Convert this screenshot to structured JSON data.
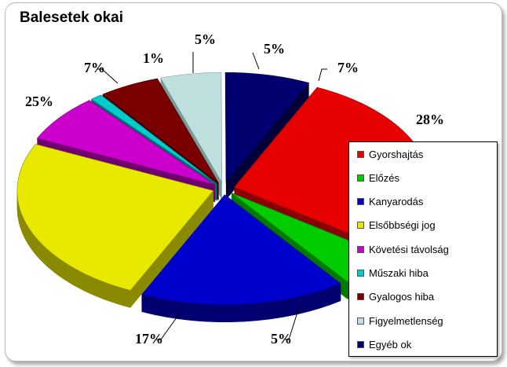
{
  "chart_data": {
    "type": "pie",
    "title": "Balesetek okai",
    "slices": [
      {
        "name": "Gyorshajtás",
        "value": 28,
        "label": "28%",
        "color": "#e60000",
        "dark": "#8a0000"
      },
      {
        "name": "Előzés",
        "value": 5,
        "label": "5%",
        "color": "#00cc00",
        "dark": "#007a00"
      },
      {
        "name": "Kanyarodás",
        "value": 17,
        "label": "17%",
        "color": "#0000cc",
        "dark": "#000070"
      },
      {
        "name": "Elsőbbségi jog",
        "value": 25,
        "label": "25%",
        "color": "#e8e800",
        "dark": "#8a8a00"
      },
      {
        "name": "Követési távolság",
        "value": 7,
        "label": "7%",
        "color": "#cc00cc",
        "dark": "#700070"
      },
      {
        "name": "Műszaki hiba",
        "value": 1,
        "label": "1%",
        "color": "#00cccc",
        "dark": "#007070"
      },
      {
        "name": "Gyalogos hiba",
        "value": 5,
        "label": "5%",
        "color": "#7a0000",
        "dark": "#400000"
      },
      {
        "name": "Figyelmetlenség",
        "value": 5,
        "label": "5%",
        "color": "#c0e0e0",
        "dark": "#7a9a9a"
      },
      {
        "name": "Egyéb ok",
        "value": 7,
        "label": "7%",
        "color": "#000070",
        "dark": "#000038"
      }
    ],
    "legend_position": "right"
  }
}
